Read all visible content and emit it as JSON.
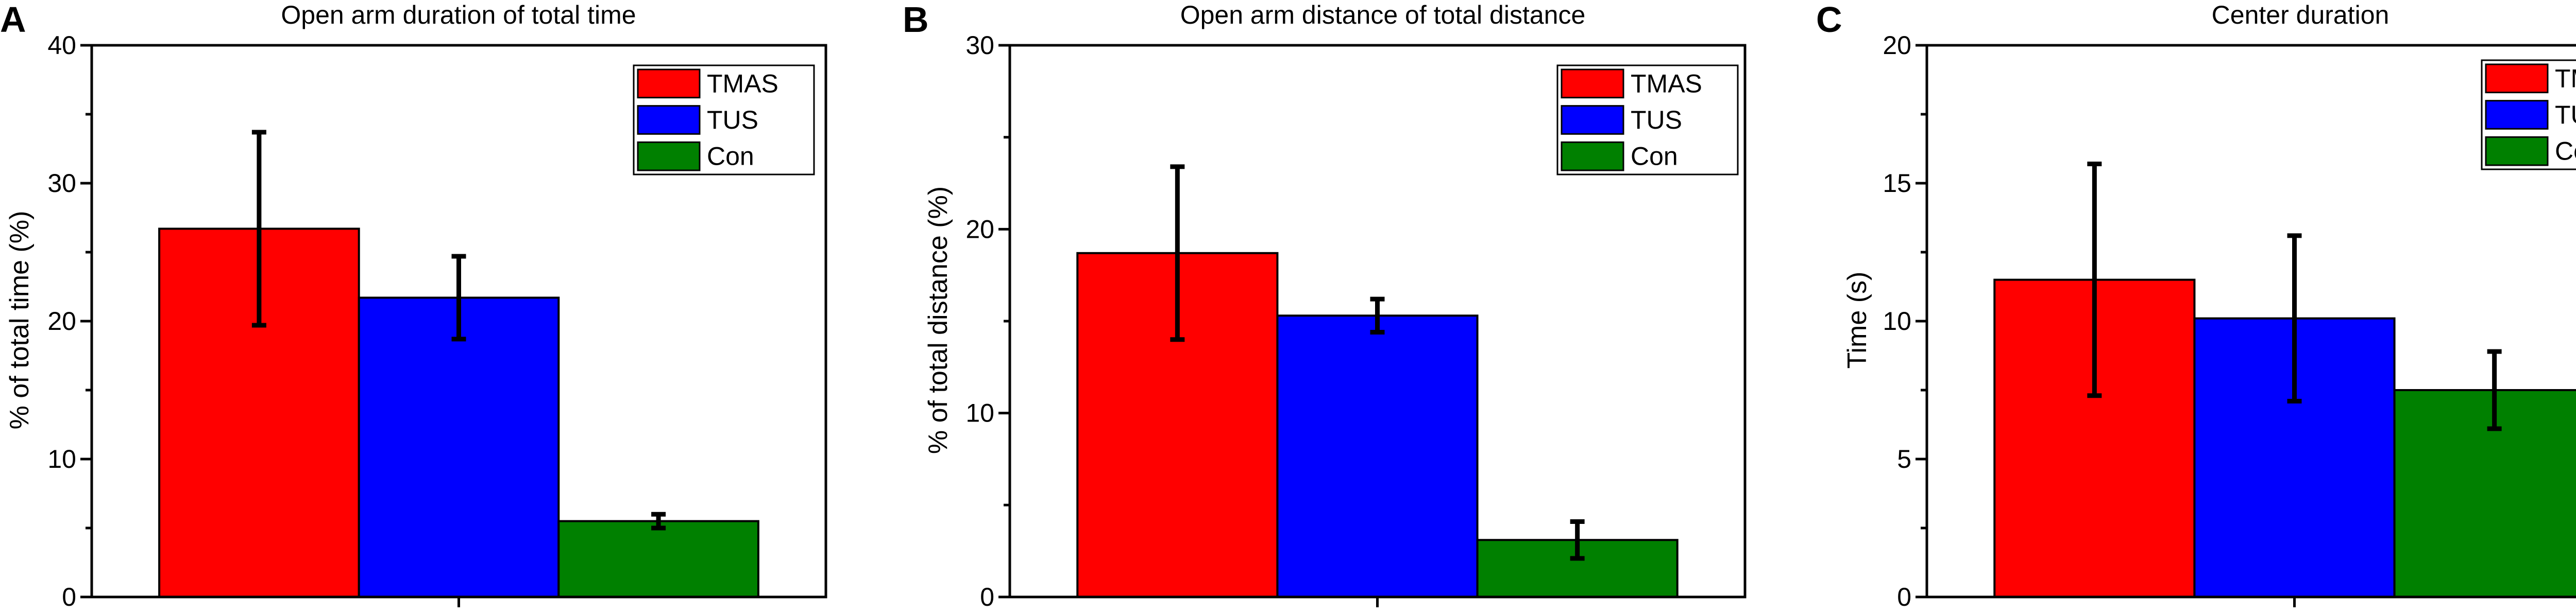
{
  "series_colors": {
    "TMAS": "#ff0000",
    "TUS": "#0000ff",
    "Con": "#008000"
  },
  "chart_data": [
    {
      "type": "bar",
      "panel": "A",
      "title": "Open arm duration of total time",
      "ylabel": "% of total time (%)",
      "xlabel": "",
      "ylim": [
        0,
        40
      ],
      "yticks": [
        0,
        10,
        20,
        30,
        40
      ],
      "categories": [
        "TMAS",
        "TUS",
        "Con"
      ],
      "values": [
        26.7,
        21.7,
        5.5
      ],
      "errors": [
        7.0,
        3.0,
        0.5
      ],
      "legend": [
        "TMAS",
        "TUS",
        "Con"
      ],
      "legend_position": "top-right",
      "grid": false
    },
    {
      "type": "bar",
      "panel": "B",
      "title": "Open arm distance of total distance",
      "ylabel": "% of total distance (%)",
      "xlabel": "",
      "ylim": [
        0,
        30
      ],
      "yticks": [
        0,
        10,
        20,
        30
      ],
      "categories": [
        "TMAS",
        "TUS",
        "Con"
      ],
      "values": [
        18.7,
        15.3,
        3.1
      ],
      "errors": [
        4.7,
        0.9,
        1.0
      ],
      "legend": [
        "TMAS",
        "TUS",
        "Con"
      ],
      "legend_position": "top-right",
      "grid": false
    },
    {
      "type": "bar",
      "panel": "C",
      "title": "Center duration",
      "ylabel": "Time (s)",
      "xlabel": "",
      "ylim": [
        0,
        20
      ],
      "yticks": [
        0,
        5,
        10,
        15,
        20
      ],
      "categories": [
        "TMAS",
        "TUS",
        "Con"
      ],
      "values": [
        11.5,
        10.1,
        7.5
      ],
      "errors": [
        4.2,
        3.0,
        1.4
      ],
      "legend": [
        "TMAS",
        "TUS",
        "Con"
      ],
      "legend_position": "top-right",
      "grid": false
    }
  ]
}
